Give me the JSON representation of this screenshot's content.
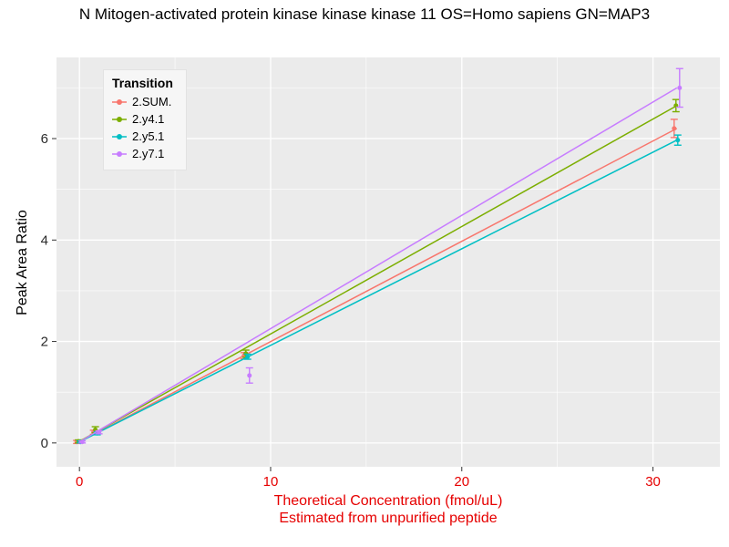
{
  "colors": {
    "page_bg": "#FFFFFF",
    "plot_bg": "#EBEBEB",
    "grid": "#FFFFFF",
    "tick": "#333333",
    "y_tick_text": "#2b2b2b",
    "x_tick_text": "#E60000",
    "x_axis_title": "#E60000",
    "title_text": "#000000"
  },
  "chart_data": {
    "type": "line",
    "title": "N Mitogen-activated protein kinase kinase kinase 11 OS=Homo sapiens GN=MAP3",
    "xlabel": "Theoretical Concentration (fmol/uL)",
    "xlabel_sub": "Estimated from unpurified peptide",
    "ylabel": "Peak Area Ratio",
    "legend_title": "Transition",
    "legend_position": "top-left-inside",
    "grid": true,
    "x": [
      0,
      0.88,
      8.75,
      31.25
    ],
    "series": [
      {
        "name": "2.SUM.",
        "color": "#F8766D",
        "values": [
          0.02,
          0.21,
          1.72,
          6.2
        ],
        "errors": [
          0.03,
          0.04,
          0.06,
          0.18
        ]
      },
      {
        "name": "2.y4.1",
        "color": "#7CAE00",
        "values": [
          0.03,
          0.26,
          1.76,
          6.65
        ],
        "errors": [
          0.03,
          0.06,
          0.07,
          0.12
        ]
      },
      {
        "name": "2.y5.1",
        "color": "#00BFC4",
        "values": [
          0.02,
          0.19,
          1.7,
          5.97
        ],
        "errors": [
          0.02,
          0.03,
          0.05,
          0.1
        ]
      },
      {
        "name": "2.y7.1",
        "color": "#C77CFF",
        "values": [
          0.02,
          0.21,
          1.33,
          7.0
        ],
        "errors": [
          0.02,
          0.03,
          0.15,
          0.38
        ]
      }
    ],
    "xlim": [
      -1.2,
      33.5
    ],
    "ylim": [
      -0.47,
      7.6
    ],
    "x_ticks": [
      0,
      10,
      20,
      30
    ],
    "x_minor": [
      5,
      15,
      25
    ],
    "y_ticks": [
      0,
      2,
      4,
      6
    ],
    "y_minor": [
      1,
      3,
      5,
      7
    ]
  }
}
